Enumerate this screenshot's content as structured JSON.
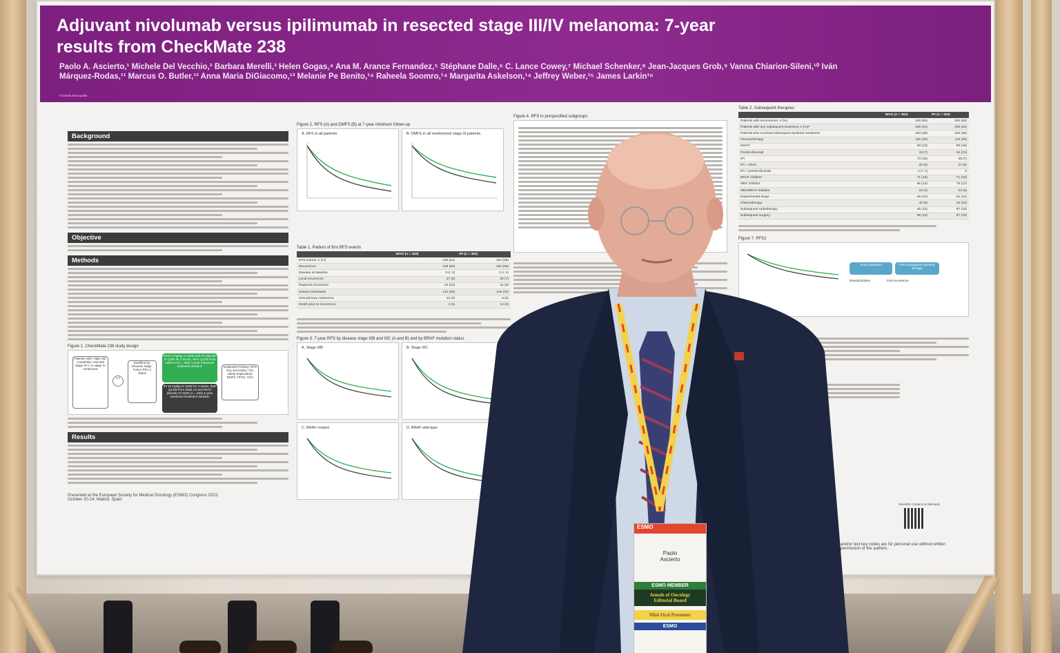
{
  "poster": {
    "title": "Adjuvant nivolumab versus ipilimumab in resected stage III/IV melanoma: 7-year results from CheckMate 238",
    "authors": "Paolo A. Ascierto,¹ Michele Del Vecchio,² Barbara Merelli,³ Helen Gogas,⁴ Ana M. Arance Fernandez,⁵ Stéphane Dalle,⁶ C. Lance Cowey,⁷ Michael Schenker,⁸ Jean-Jacques Grob,⁹ Vanna Chiarion-Sileni,¹⁰ Iván Márquez-Rodas,¹¹ Marcus O. Butler,¹² Anna Maria DiGiacomo,¹³ Melanie Pe Benito,¹⁴ Raheela Soomro,¹⁴ Margarita Askelson,¹⁴ Jeffrey Weber,¹⁵ James Larkin¹⁶",
    "contributed_note": "*Contributed equally",
    "sections": {
      "background": "Background",
      "objective": "Objective",
      "methods": "Methods",
      "results": "Results"
    },
    "figures": {
      "fig1": "Figure 1. CheckMate 238 study design",
      "fig2": "Figure 2. RFS (A) and DMFS (B) at 7-year minimum follow-up",
      "fig2a": "A. RFS in all patients",
      "fig2b": "B. DMFS in all randomized stage III patients",
      "fig3": "Figure 3. 7-year RFS by disease stage IIIB and IIIC (A and B) and by BRAF mutation status",
      "fig3a": "A. Stage IIIB",
      "fig3b": "B. Stage IIIC",
      "fig3c": "C. BRAF mutant",
      "fig3d": "D. BRAF wild-type",
      "fig4": "Figure 4. RFS in prespecified subgroups",
      "fig7": "Figure 7. PFS2"
    },
    "table1": {
      "title": "Table 1. Pattern of first RFS events",
      "col_nivo": "NIVO (n = 453)",
      "col_ipi": "IPI (n = 453)",
      "rows": [
        {
          "label": "RFS events, n (%)",
          "nivo": "230 (51)",
          "ipi": "264 (58)"
        },
        {
          "label": "Recurrence",
          "nivo": "226 (50)",
          "ipi": "250 (55)"
        },
        {
          "label": "Disease at baseline",
          "nivo": "3 (< 1)",
          "ipi": "2 (< 1)"
        },
        {
          "label": "Local recurrence",
          "nivo": "27 (6)",
          "ipi": "30 (7)"
        },
        {
          "label": "Regional recurrence",
          "nivo": "44 (10)",
          "ipi": "41 (9)"
        },
        {
          "label": "Distant metastasis",
          "nivo": "131 (29)",
          "ipi": "149 (33)"
        },
        {
          "label": "New primary melanoma",
          "nivo": "13 (3)",
          "ipi": "8 (2)"
        },
        {
          "label": "Death prior to recurrence",
          "nivo": "4 (1)",
          "ipi": "14 (3)"
        }
      ]
    },
    "table2": {
      "title": "Table 2. Subsequent therapies",
      "col_nivo": "NIVO (n = 453)",
      "col_ipi": "IPI (n = 453)",
      "rows": [
        {
          "label": "Patients with recurrences, n (%)",
          "nivo": "226 (50)",
          "ipi": "250 (55)"
        },
        {
          "label": "Patients with any subsequent treatment, n (%)ᵃ",
          "nivo": "199 (44)",
          "ipi": "200 (44)"
        },
        {
          "label": "Patients who received subsequent systemic treatment",
          "nivo": "163 (36)",
          "ipi": "163 (36)"
        },
        {
          "label": "Immunotherapy",
          "nivo": "116 (26)",
          "ipi": "116 (26)"
        },
        {
          "label": "NIVOᵇ",
          "nivo": "60 (13)",
          "ipi": "80 (18)"
        },
        {
          "label": "Pembrolizumab",
          "nivo": "33 (7)",
          "ipi": "93 (21)"
        },
        {
          "label": "IPI",
          "nivo": "73 (16)",
          "ipi": "35 (7)"
        },
        {
          "label": "IPI + NIVO",
          "nivo": "26 (6)",
          "ipi": "27 (6)"
        },
        {
          "label": "IPI + pembrolizumab",
          "nivo": "2 (< 1)",
          "ipi": "0"
        },
        {
          "label": "BRAF inhibitor",
          "nivo": "71 (16)",
          "ipi": "71 (16)"
        },
        {
          "label": "MEK inhibitor",
          "nivo": "65 (14)",
          "ipi": "76 (17)"
        },
        {
          "label": "MEK/BRAF inhibitor",
          "nivo": "18 (4)",
          "ipi": "23 (5)"
        },
        {
          "label": "Experimental drugs",
          "nivo": "45 (10)",
          "ipi": "52 (12)"
        },
        {
          "label": "Chemotherapy",
          "nivo": "40 (9)",
          "ipi": "45 (10)"
        },
        {
          "label": "Subsequent radiotherapy",
          "nivo": "45 (10)",
          "ipi": "87 (19)"
        },
        {
          "label": "Subsequent surgery",
          "nivo": "99 (22)",
          "ipi": "87 (19)"
        }
      ]
    },
    "study_design": {
      "patients": "Patients with: High-risk, completely resected stage III-C or stage IV melanoma",
      "stratified": "Stratified by: Disease stage; Tumor PD-L1 status",
      "nivo_arm": "NIVO 3 mg/kg IV Q2W and IPI placebo IV Q3W for 4 doses, then Q12W from week 24 (n = 453) 1-year maximum treatment duration",
      "ipi_arm": "IPI 10 mg/kg IV Q3W for 4 doses, then Q12W from week 24 and NIVO placebo IV Q2W (n = 453) 1-year maximum treatment duration",
      "endpoints": "Endpoints Primary: RFS Key secondary: OS, safety Exploratory: DMFS, PFS2, HCU",
      "ratio": "1:1"
    },
    "pfs2_flow": {
      "study_treatment": "Study treatment",
      "first_subsequent": "First subsequent systemic therapy",
      "randomization": "Randomization",
      "first_recurrence": "First recurrence"
    },
    "presented_at": "Presented at the European Society for Medical Oncology (ESMO) Congress 2023; October 20-24; Madrid, Spain",
    "copyright_note": "and/or text key codes are for personal use without written permission of the authors.",
    "scientific_content": "Scientific Content on Demand"
  },
  "badge": {
    "logo": "ESMO",
    "name_line1": "Paolo",
    "name_line2": "Ascierto",
    "member": "ESMO MEMBER",
    "board_line1": "Annals of Oncology",
    "board_line2": "Editorial Board",
    "presenter": "Mini Oral Presenter",
    "bottom": "ESMO"
  },
  "colors": {
    "poster_header": "#8f2b8f",
    "section_header": "#3c3c3c",
    "suit": "#1f2740",
    "badge_green": "#2f7d3a",
    "badge_yellow": "#f2d24b"
  }
}
